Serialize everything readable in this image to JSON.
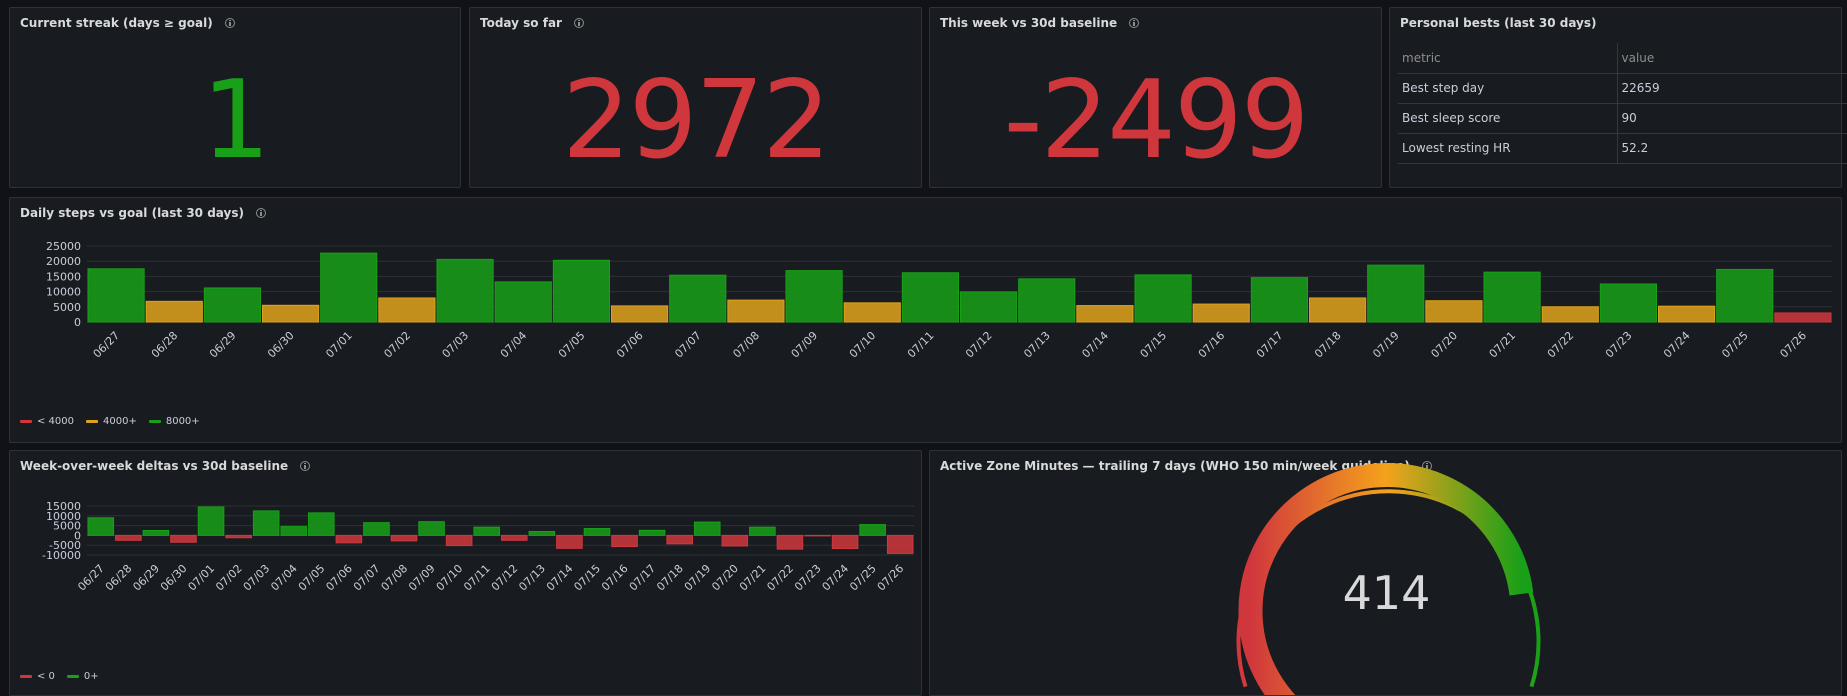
{
  "colors": {
    "red": "#d0373d",
    "orange": "#e0a21c",
    "green": "#18a018",
    "bg": "#181b1f"
  },
  "streak": {
    "title": "Current streak (days ≥ goal)",
    "value": "1",
    "color": "#18a018"
  },
  "today": {
    "title": "Today so far",
    "value": "2972",
    "color": "#d0373d"
  },
  "week": {
    "title": "This week vs 30d baseline",
    "value": "-2499",
    "color": "#d0373d"
  },
  "bests": {
    "title": "Personal bests (last 30 days)",
    "col_metric": "metric",
    "col_value": "value",
    "rows": [
      {
        "metric": "Best step day",
        "value": "22659"
      },
      {
        "metric": "Best sleep score",
        "value": "90"
      },
      {
        "metric": "Lowest resting HR",
        "value": "52.2"
      }
    ]
  },
  "steps": {
    "title": "Daily steps vs goal (last 30 days)",
    "legend": [
      {
        "label": "< 4000",
        "color": "#d0373d"
      },
      {
        "label": "4000+",
        "color": "#e0a21c"
      },
      {
        "label": "8000+",
        "color": "#18a018"
      }
    ]
  },
  "deltas": {
    "title": "Week-over-week deltas vs 30d baseline",
    "legend": [
      {
        "label": "< 0",
        "color": "#d0373d"
      },
      {
        "label": "0+",
        "color": "#18a018"
      }
    ]
  },
  "azm": {
    "title": "Active Zone Minutes — trailing 7 days (WHO 150 min/week guideline)",
    "value": "414",
    "gauge_fraction": 0.97
  },
  "chart_data": [
    {
      "type": "bar",
      "title": "Daily steps vs goal (last 30 days)",
      "categories": [
        "06/27",
        "06/28",
        "06/29",
        "06/30",
        "07/01",
        "07/02",
        "07/03",
        "07/04",
        "07/05",
        "07/06",
        "07/07",
        "07/08",
        "07/09",
        "07/10",
        "07/11",
        "07/12",
        "07/13",
        "07/14",
        "07/15",
        "07/16",
        "07/17",
        "07/18",
        "07/19",
        "07/20",
        "07/21",
        "07/22",
        "07/23",
        "07/24",
        "07/25",
        "07/26"
      ],
      "values": [
        17500,
        6800,
        11200,
        5500,
        22659,
        7900,
        20600,
        13200,
        20300,
        5300,
        15400,
        7200,
        16900,
        6300,
        16200,
        9900,
        14200,
        5400,
        15500,
        5900,
        14600,
        7900,
        18700,
        7000,
        16400,
        5000,
        12500,
        5200,
        17300,
        2972
      ],
      "ylim": [
        0,
        25000
      ],
      "yticks": [
        0,
        5000,
        10000,
        15000,
        20000,
        25000
      ]
    },
    {
      "type": "bar",
      "title": "Week-over-week deltas vs 30d baseline",
      "categories": [
        "06/27",
        "06/28",
        "06/29",
        "06/30",
        "07/01",
        "07/02",
        "07/03",
        "07/04",
        "07/05",
        "07/06",
        "07/07",
        "07/08",
        "07/09",
        "07/10",
        "07/11",
        "07/12",
        "07/13",
        "07/14",
        "07/15",
        "07/16",
        "07/17",
        "07/18",
        "07/19",
        "07/20",
        "07/21",
        "07/22",
        "07/23",
        "07/24",
        "07/25",
        "07/26"
      ],
      "values": [
        9000,
        -2500,
        2500,
        -3500,
        14500,
        -1200,
        12500,
        4500,
        11500,
        -3800,
        6500,
        -2800,
        7000,
        -5200,
        4200,
        -2500,
        2000,
        -6600,
        3500,
        -5700,
        2600,
        -4300,
        6800,
        -5400,
        4200,
        -7000,
        -200,
        -6700,
        5500,
        -9200
      ],
      "ylim": [
        -10000,
        15000
      ],
      "yticks": [
        -10000,
        -5000,
        0,
        5000,
        10000,
        15000
      ]
    }
  ]
}
